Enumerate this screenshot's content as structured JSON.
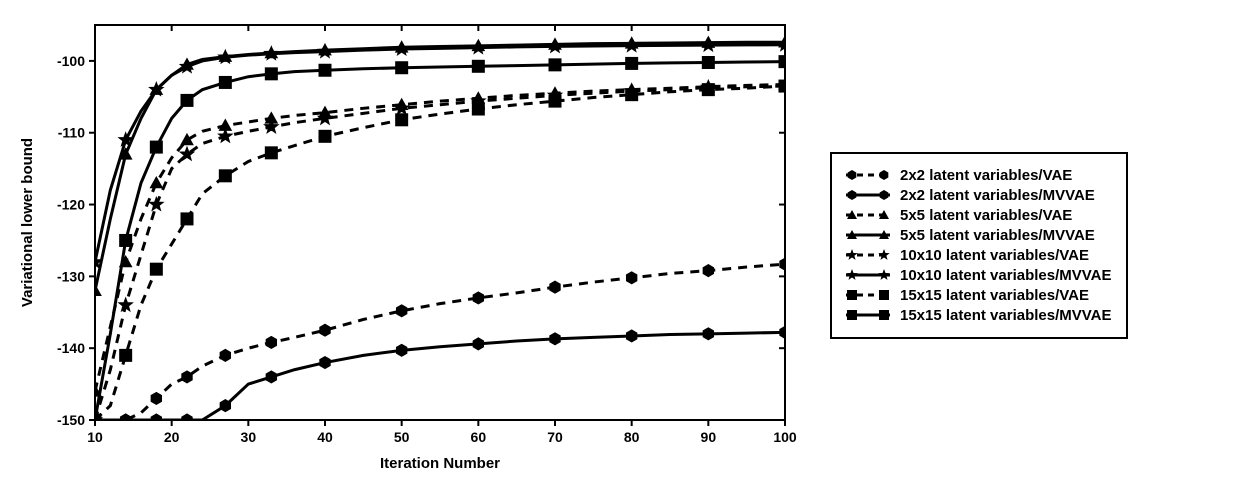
{
  "chart": {
    "type": "line",
    "xlabel": "Iteration Number",
    "ylabel": "Variational lower bound",
    "label_fontsize": 15,
    "tick_fontsize": 14,
    "background_color": "#ffffff",
    "axis_color": "#000000",
    "xlim": [
      10,
      100
    ],
    "ylim": [
      -150,
      -95
    ],
    "xtick_step": 10,
    "xticks": [
      10,
      20,
      30,
      40,
      50,
      60,
      70,
      80,
      90,
      100
    ],
    "yticks": [
      -150,
      -140,
      -130,
      -120,
      -110,
      -100
    ],
    "line_width": 3,
    "marker_size": 6,
    "sample_x": [
      10,
      12,
      14,
      16,
      18,
      20,
      22,
      24,
      27,
      30,
      33,
      36,
      40,
      45,
      50,
      55,
      60,
      65,
      70,
      75,
      80,
      85,
      90,
      95,
      100
    ],
    "series": [
      {
        "label": "2x2 latent variables/VAE",
        "dash": "dashed",
        "marker": "hex",
        "color": "#000000",
        "y": [
          -150,
          -150,
          -150,
          -149,
          -147,
          -145,
          -144,
          -142.5,
          -141,
          -140,
          -139.2,
          -138.5,
          -137.5,
          -136,
          -134.8,
          -133.8,
          -133,
          -132.3,
          -131.5,
          -130.8,
          -130.2,
          -129.6,
          -129.2,
          -128.7,
          -128.3
        ]
      },
      {
        "label": "2x2 latent variables/MVVAE",
        "dash": "solid",
        "marker": "hex",
        "color": "#000000",
        "y": [
          -150,
          -150,
          -150,
          -150,
          -150,
          -150,
          -150,
          -150,
          -148,
          -145,
          -144,
          -143,
          -142,
          -141,
          -140.3,
          -139.8,
          -139.4,
          -139,
          -138.7,
          -138.5,
          -138.3,
          -138.1,
          -138,
          -137.9,
          -137.8
        ]
      },
      {
        "label": "5x5 latent variables/VAE",
        "dash": "dashed",
        "marker": "triangle",
        "color": "#000000",
        "y": [
          -146,
          -137,
          -128,
          -122,
          -117,
          -113.5,
          -111,
          -109.8,
          -109,
          -108.5,
          -108,
          -107.6,
          -107.2,
          -106.6,
          -106.1,
          -105.6,
          -105.2,
          -104.8,
          -104.5,
          -104.2,
          -104,
          -103.8,
          -103.6,
          -103.4,
          -103.3
        ]
      },
      {
        "label": "5x5 latent variables/MVVAE",
        "dash": "solid",
        "marker": "triangle",
        "color": "#000000",
        "y": [
          -132,
          -122,
          -113,
          -108,
          -104,
          -102,
          -100.5,
          -99.8,
          -99.4,
          -99.1,
          -98.9,
          -98.7,
          -98.5,
          -98.3,
          -98.1,
          -98,
          -97.9,
          -97.8,
          -97.7,
          -97.6,
          -97.55,
          -97.5,
          -97.45,
          -97.4,
          -97.4
        ]
      },
      {
        "label": "10x10 latent variables/VAE",
        "dash": "dashed",
        "marker": "star",
        "color": "#000000",
        "y": [
          -150,
          -143,
          -134,
          -127,
          -120,
          -115,
          -113,
          -111.5,
          -110.5,
          -109.8,
          -109.2,
          -108.6,
          -108,
          -107.3,
          -106.6,
          -106.1,
          -105.6,
          -105.2,
          -104.8,
          -104.5,
          -104.2,
          -104,
          -103.7,
          -103.6,
          -103.5
        ]
      },
      {
        "label": "10x10 latent variables/MVVAE",
        "dash": "solid",
        "marker": "star",
        "color": "#000000",
        "y": [
          -128,
          -118,
          -111,
          -107,
          -104,
          -102,
          -100.8,
          -100,
          -99.5,
          -99.2,
          -99,
          -98.85,
          -98.7,
          -98.5,
          -98.35,
          -98.25,
          -98.15,
          -98.05,
          -97.98,
          -97.92,
          -97.87,
          -97.83,
          -97.8,
          -97.77,
          -97.75
        ]
      },
      {
        "label": "15x15 latent variables/VAE",
        "dash": "dashed",
        "marker": "square",
        "color": "#000000",
        "y": [
          -150,
          -148,
          -141,
          -134,
          -129,
          -125.5,
          -122,
          -118.5,
          -116,
          -114,
          -112.8,
          -111.8,
          -110.5,
          -109.3,
          -108.2,
          -107.4,
          -106.7,
          -106.1,
          -105.6,
          -105.1,
          -104.7,
          -104.3,
          -104,
          -103.8,
          -103.5
        ]
      },
      {
        "label": "15x15 latent variables/MVVAE",
        "dash": "solid",
        "marker": "square",
        "color": "#000000",
        "y": [
          -150,
          -138,
          -125,
          -117,
          -112,
          -108,
          -105.5,
          -104,
          -103,
          -102.2,
          -101.8,
          -101.5,
          -101.3,
          -101.1,
          -100.95,
          -100.85,
          -100.75,
          -100.65,
          -100.55,
          -100.45,
          -100.35,
          -100.28,
          -100.22,
          -100.16,
          -100.1
        ]
      }
    ]
  },
  "legend": {
    "border_color": "#000000",
    "background_color": "#ffffff",
    "fontsize": 15
  }
}
